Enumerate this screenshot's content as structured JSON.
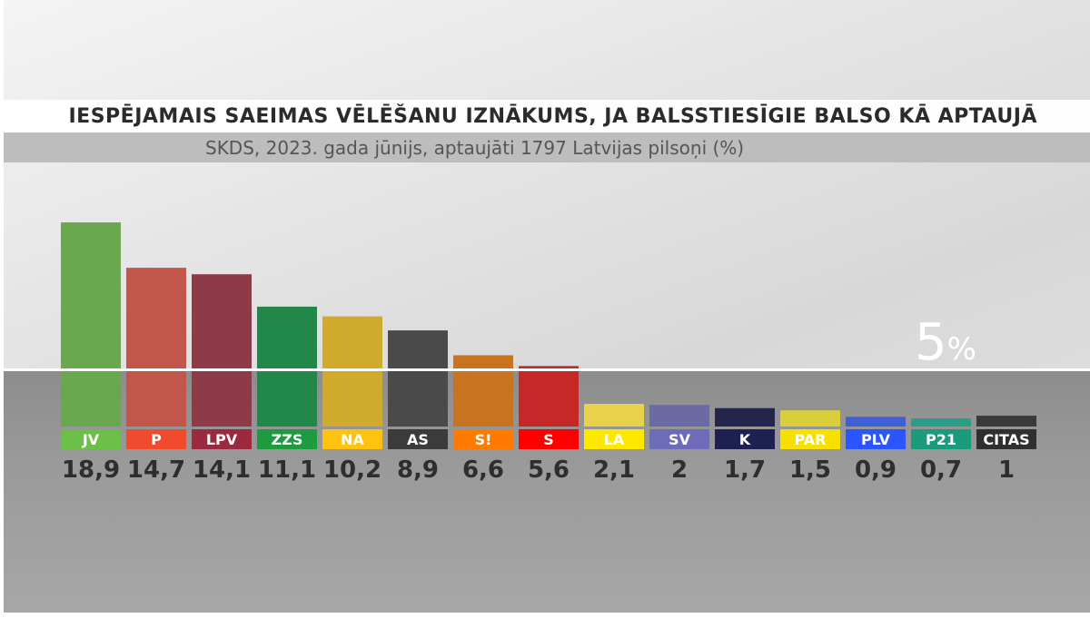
{
  "title": "IESPĒJAMAIS SAEIMAS VĒLĒŠANU IZNĀKUMS, JA BALSSTIESĪGIE BALSO KĀ APTAUJĀ",
  "subtitle": "SKDS, 2023. gada jūnijs, aptaujāti 1797 Latvijas pilsoņi (%)",
  "threshold": {
    "value": 5,
    "number": "5",
    "unit": "%"
  },
  "chart_data": {
    "type": "bar",
    "title": "IESPĒJAMAIS SAEIMAS VĒLĒŠANU IZNĀKUMS, JA BALSSTIESĪGIE BALSO KĀ APTAUJĀ",
    "subtitle": "SKDS, 2023. gada jūnijs, aptaujāti 1797 Latvijas pilsoņi (%)",
    "categories": [
      "JV",
      "P",
      "LPV",
      "ZZS",
      "NA",
      "AS",
      "S!",
      "S",
      "LA",
      "SV",
      "K",
      "PAR",
      "PLV",
      "P21",
      "CITAS"
    ],
    "values": [
      18.9,
      14.7,
      14.1,
      11.1,
      10.2,
      8.9,
      6.6,
      5.6,
      2.1,
      2,
      1.7,
      1.5,
      0.9,
      0.7,
      1
    ],
    "value_labels": [
      "18,9",
      "14,7",
      "14,1",
      "11,1",
      "10,2",
      "8,9",
      "6,6",
      "5,6",
      "2,1",
      "2",
      "1,7",
      "1,5",
      "0,9",
      "0,7",
      "1"
    ],
    "bar_colors": [
      "#6aa84f",
      "#c2564a",
      "#8f3b47",
      "#22884a",
      "#cfaa2c",
      "#4a4a4a",
      "#c8731f",
      "#c62828",
      "#e8d24a",
      "#6b6aa3",
      "#23264a",
      "#d9cf3a",
      "#3e5fd6",
      "#2a9e86",
      "#3a3a3a"
    ],
    "label_colors": [
      "#6cc04a",
      "#f04a2f",
      "#9b2940",
      "#1e9a3f",
      "#ffc20e",
      "#3b3b3b",
      "#ff7a00",
      "#ff0000",
      "#ffe800",
      "#6e6cb8",
      "#1d2050",
      "#f5e000",
      "#2b55ff",
      "#1a9c7c",
      "#2f2f2f"
    ],
    "ylim": [
      0,
      20
    ],
    "threshold": 5,
    "grid": false,
    "legend": "none"
  }
}
